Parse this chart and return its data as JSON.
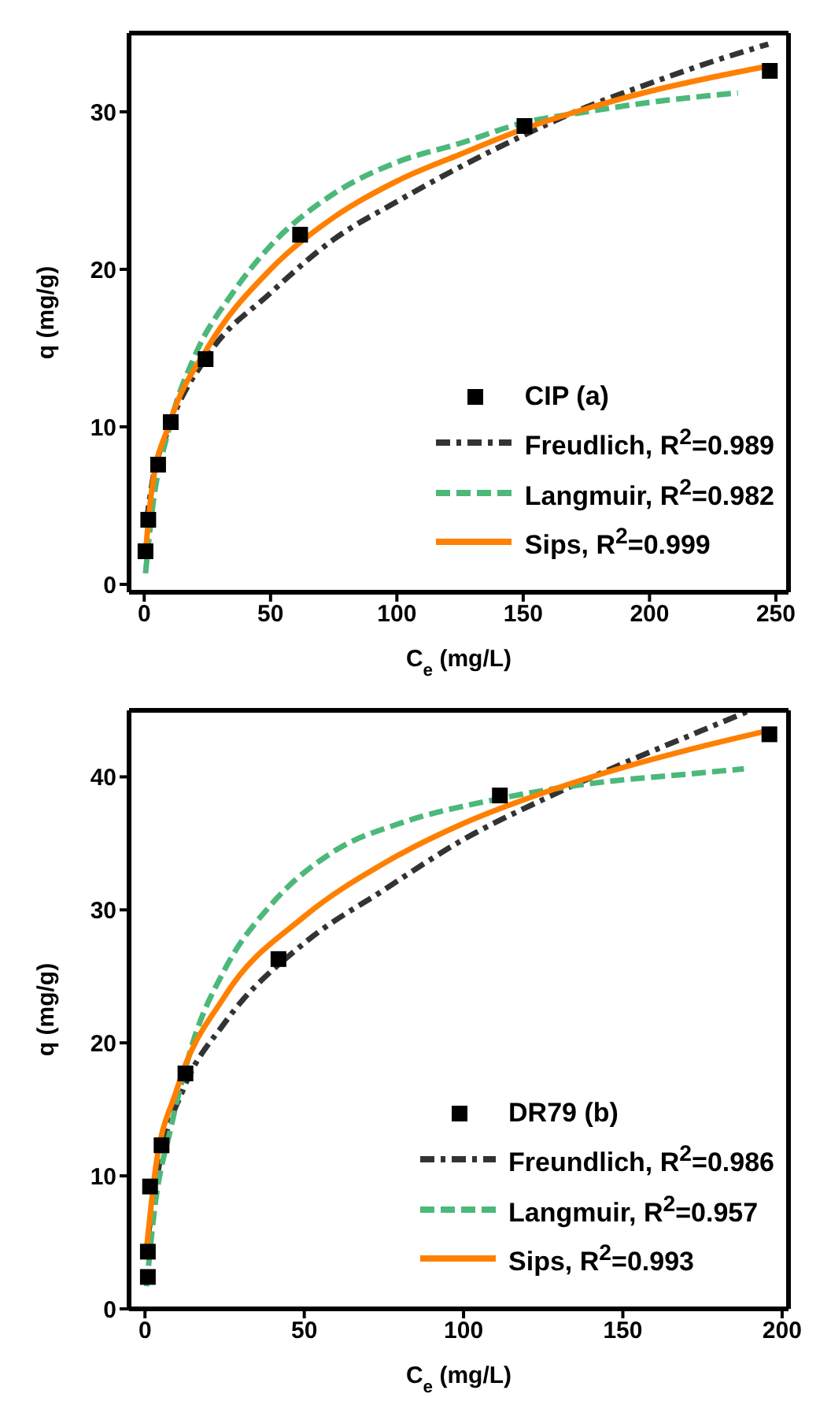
{
  "chart_data": [
    {
      "type": "scatter",
      "xlabel": "C$_{e}$ (mg/L)",
      "ylabel": "q (mg/g)",
      "xlim": [
        -6,
        255
      ],
      "ylim": [
        -0.5,
        35
      ],
      "xticks": [
        0,
        50,
        100,
        150,
        200,
        250
      ],
      "yticks": [
        0,
        10,
        20,
        30
      ],
      "grid": false,
      "legend": "bottom right",
      "series": [
        {
          "name": "CIP   (a)",
          "marker": "square",
          "color": "#000000",
          "x": [
            0.5,
            1.6,
            5.5,
            10.5,
            24.3,
            61.7,
            150.5,
            247.6
          ],
          "values": [
            2.1,
            4.1,
            7.6,
            10.3,
            14.3,
            22.2,
            29.1,
            32.6
          ]
        },
        {
          "name": "Freudlich, R$^{2}$=0.989",
          "type": "line",
          "line_style": "dotted",
          "color": "#333333",
          "x": [
            1,
            3,
            10,
            25,
            50,
            75,
            100,
            125,
            150,
            175,
            200,
            225,
            247
          ],
          "values": [
            4.1,
            6.3,
            10,
            14.5,
            18.5,
            21.9,
            24.3,
            26.5,
            28.5,
            30.3,
            31.8,
            33.2,
            34.3
          ]
        },
        {
          "name": "Langmuir, R$^{2}$=0.982",
          "type": "line",
          "line_style": "dashed",
          "color": "#4cb87a",
          "x": [
            0.5,
            3,
            10,
            20,
            35,
            50,
            75,
            100,
            125,
            150,
            175,
            200,
            235
          ],
          "values": [
            0.7,
            4.5,
            10,
            14.5,
            18.5,
            21.5,
            24.8,
            26.8,
            28,
            29.3,
            30,
            30.6,
            31.2
          ]
        },
        {
          "name": "Sips, R$^{2}$=0.999",
          "type": "line",
          "line_style": "solid",
          "color": "#ff8000",
          "x": [
            0.5,
            3,
            10,
            25,
            50,
            75,
            100,
            125,
            150,
            175,
            200,
            225,
            247
          ],
          "values": [
            2,
            6,
            10.2,
            15,
            20,
            23.3,
            25.6,
            27.3,
            28.9,
            30.2,
            31.3,
            32.2,
            32.9
          ]
        }
      ]
    },
    {
      "type": "scatter",
      "xlabel": "C$_{e}$ (mg/L)",
      "ylabel": "q (mg/g)",
      "xlim": [
        -5,
        202
      ],
      "ylim": [
        0,
        45
      ],
      "xticks": [
        0,
        50,
        100,
        150,
        200
      ],
      "yticks": [
        0,
        10,
        20,
        30,
        40
      ],
      "grid": false,
      "legend": "bottom right",
      "series": [
        {
          "name": "DR79   (b)",
          "marker": "square",
          "color": "#000000",
          "x": [
            0.9,
            0.9,
            1.6,
            5.2,
            12.7,
            41.9,
            111.4,
            196
          ],
          "values": [
            2.4,
            4.3,
            9.2,
            12.3,
            17.7,
            26.3,
            38.6,
            43.2
          ]
        },
        {
          "name": "Freundlich, R$^{2}$=0.986",
          "type": "line",
          "line_style": "dotted",
          "color": "#333333",
          "x": [
            1,
            5,
            12,
            25,
            50,
            75,
            100,
            125,
            150,
            175,
            190
          ],
          "values": [
            5.5,
            11.5,
            16.5,
            21.5,
            27.5,
            31.5,
            35.3,
            38.3,
            41,
            43.5,
            45
          ]
        },
        {
          "name": "Langmuir, R$^{2}$=0.957",
          "type": "line",
          "line_style": "dashed",
          "color": "#4cb87a",
          "x": [
            0.5,
            3,
            8,
            15,
            25,
            40,
            60,
            80,
            110,
            140,
            170,
            188
          ],
          "values": [
            1.7,
            7.5,
            13.5,
            20,
            25.5,
            30.5,
            34.5,
            36.5,
            38.3,
            39.5,
            40.2,
            40.6
          ]
        },
        {
          "name": "Sips, R$^{2}$=0.993",
          "type": "line",
          "line_style": "solid",
          "color": "#ff8000",
          "x": [
            0.5,
            3,
            10,
            25,
            50,
            75,
            100,
            125,
            150,
            175,
            196
          ],
          "values": [
            4.5,
            10,
            16.5,
            23.5,
            29.5,
            33.5,
            36.5,
            38.8,
            40.7,
            42.3,
            43.5
          ]
        }
      ]
    }
  ]
}
